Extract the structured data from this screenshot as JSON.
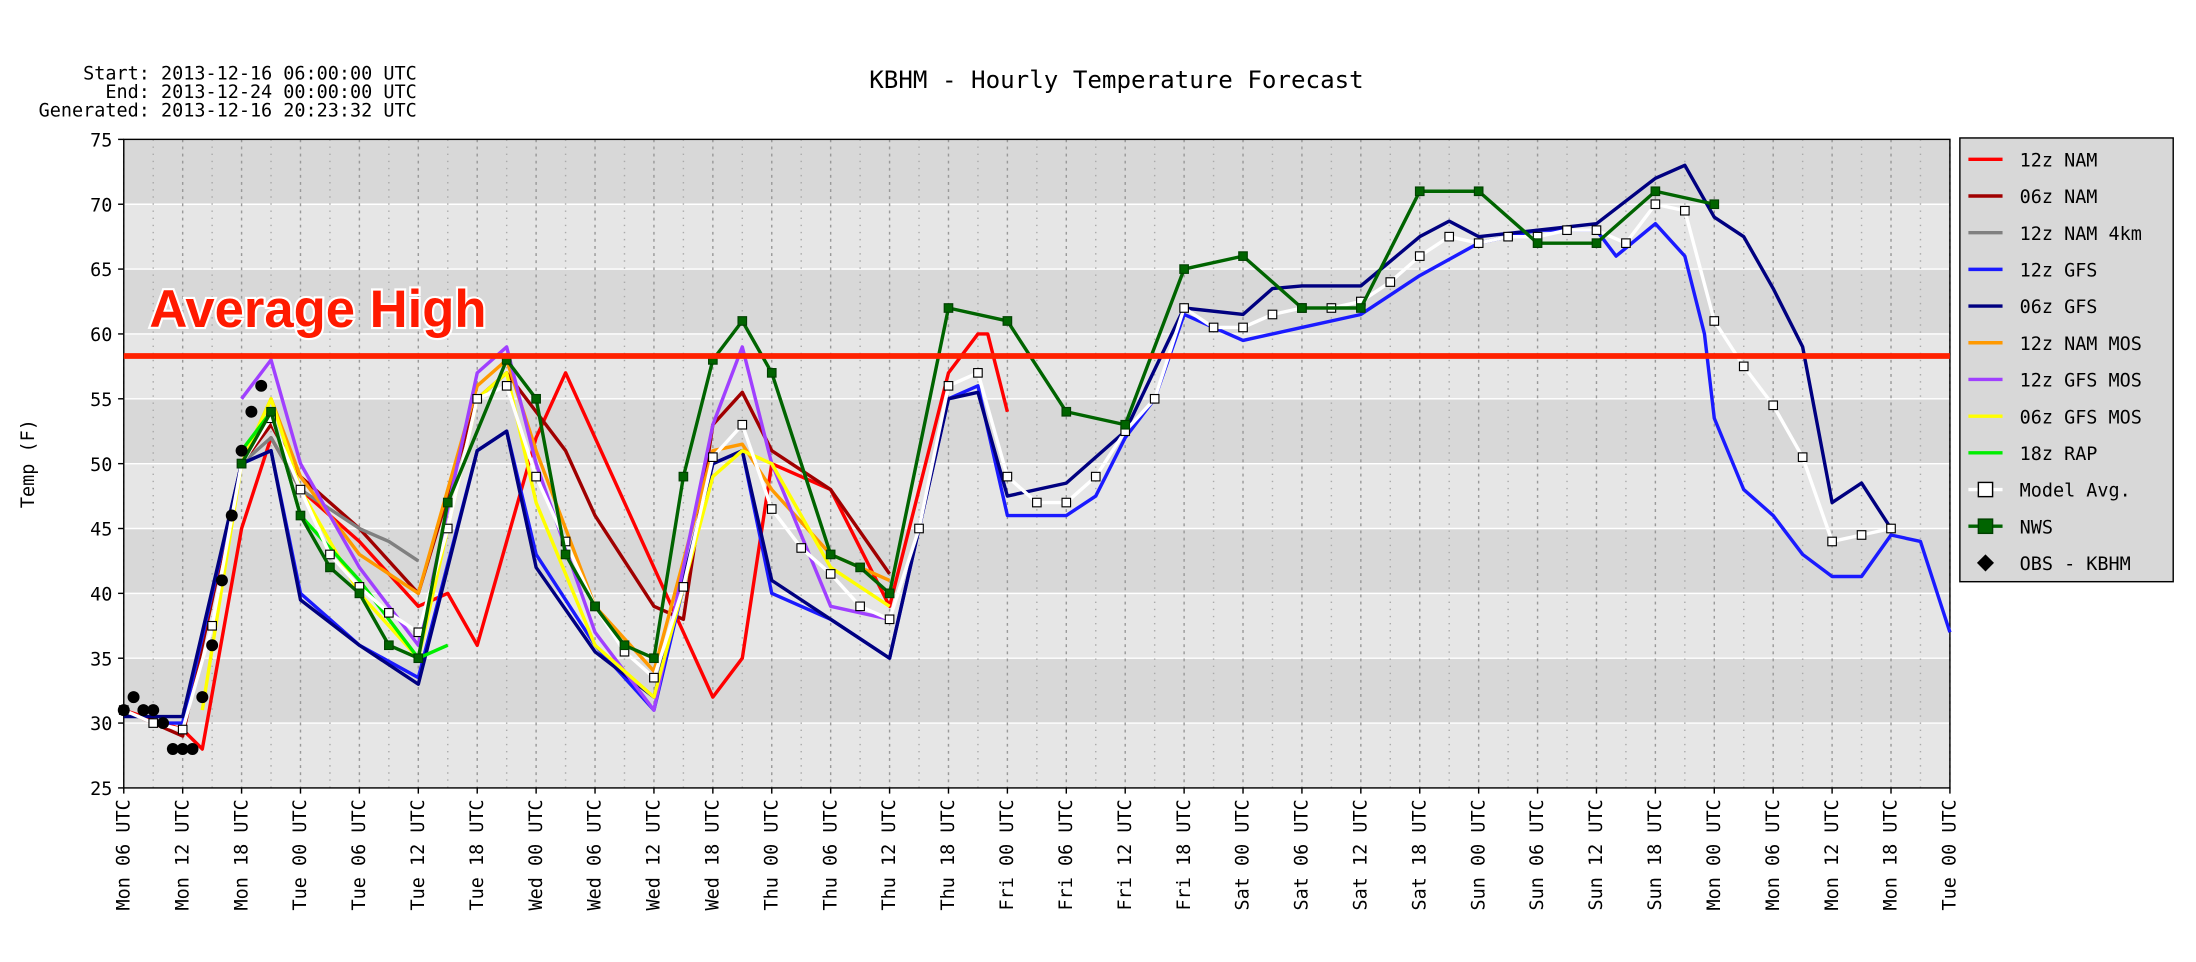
{
  "chart_data": {
    "type": "line",
    "title": "KBHM - Hourly Temperature Forecast",
    "header": [
      "Start: 2013-12-16 06:00:00 UTC",
      "End: 2013-12-24 00:00:00 UTC",
      "Generated: 2013-12-16 20:23:32 UTC"
    ],
    "y_label": "Temp (F)",
    "xlim": [
      0,
      186
    ],
    "xticks": [
      {
        "value": 0,
        "label": "Mon 06 UTC"
      },
      {
        "value": 6,
        "label": "Mon 12 UTC"
      },
      {
        "value": 12,
        "label": "Mon 18 UTC"
      },
      {
        "value": 18,
        "label": "Tue 00 UTC"
      },
      {
        "value": 24,
        "label": "Tue 06 UTC"
      },
      {
        "value": 30,
        "label": "Tue 12 UTC"
      },
      {
        "value": 36,
        "label": "Tue 18 UTC"
      },
      {
        "value": 42,
        "label": "Wed 00 UTC"
      },
      {
        "value": 48,
        "label": "Wed 06 UTC"
      },
      {
        "value": 54,
        "label": "Wed 12 UTC"
      },
      {
        "value": 60,
        "label": "Wed 18 UTC"
      },
      {
        "value": 66,
        "label": "Thu 00 UTC"
      },
      {
        "value": 72,
        "label": "Thu 06 UTC"
      },
      {
        "value": 78,
        "label": "Thu 12 UTC"
      },
      {
        "value": 84,
        "label": "Thu 18 UTC"
      },
      {
        "value": 90,
        "label": "Fri 00 UTC"
      },
      {
        "value": 96,
        "label": "Fri 06 UTC"
      },
      {
        "value": 102,
        "label": "Fri 12 UTC"
      },
      {
        "value": 108,
        "label": "Fri 18 UTC"
      },
      {
        "value": 114,
        "label": "Sat 00 UTC"
      },
      {
        "value": 120,
        "label": "Sat 06 UTC"
      },
      {
        "value": 126,
        "label": "Sat 12 UTC"
      },
      {
        "value": 132,
        "label": "Sat 18 UTC"
      },
      {
        "value": 138,
        "label": "Sun 00 UTC"
      },
      {
        "value": 144,
        "label": "Sun 06 UTC"
      },
      {
        "value": 150,
        "label": "Sun 12 UTC"
      },
      {
        "value": 156,
        "label": "Sun 18 UTC"
      },
      {
        "value": 162,
        "label": "Mon 00 UTC"
      },
      {
        "value": 168,
        "label": "Mon 06 UTC"
      },
      {
        "value": 174,
        "label": "Mon 12 UTC"
      },
      {
        "value": 180,
        "label": "Mon 18 UTC"
      },
      {
        "value": 186,
        "label": "Tue 00 UTC"
      }
    ],
    "ylim": [
      25,
      75
    ],
    "yticks": [
      25,
      30,
      35,
      40,
      45,
      50,
      55,
      60,
      65,
      70,
      75
    ],
    "grid": true,
    "legend": "right",
    "annotation": {
      "text": "Average High",
      "value": 58.3,
      "color": "#ff2200"
    },
    "series": [
      {
        "name": "12z NAM",
        "color": "#ff0000",
        "marker": "none",
        "x": [
          0,
          6,
          8,
          12,
          15,
          18,
          24,
          30,
          33,
          36,
          42,
          45,
          48,
          54,
          60,
          63,
          66,
          72,
          78,
          84,
          87,
          88,
          90
        ],
        "values": [
          31,
          29.5,
          28,
          45,
          52,
          48,
          44,
          39,
          40,
          36,
          52,
          57,
          52,
          42,
          32,
          35,
          50,
          48,
          39,
          57,
          60,
          60,
          54
        ]
      },
      {
        "name": "06z NAM",
        "color": "#a00000",
        "marker": "none",
        "x": [
          0,
          6,
          12,
          15,
          18,
          24,
          30,
          36,
          39,
          42,
          45,
          48,
          54,
          57,
          60,
          63,
          66,
          72,
          78
        ],
        "values": [
          31,
          29,
          50,
          53,
          49,
          45,
          40,
          55,
          57,
          54,
          51,
          46,
          39,
          38,
          53,
          55.5,
          51,
          48,
          41.5
        ]
      },
      {
        "name": "12z NAM 4km",
        "color": "#808080",
        "marker": "none",
        "x": [
          6,
          12,
          15,
          18,
          24,
          27,
          30
        ],
        "values": [
          30,
          50,
          52,
          48,
          45,
          44,
          42.5
        ]
      },
      {
        "name": "12z GFS",
        "color": "#1a1aff",
        "marker": "none",
        "x": [
          3,
          6,
          12,
          15,
          18,
          24,
          30,
          36,
          39,
          42,
          48,
          54,
          60,
          63,
          66,
          72,
          78,
          84,
          87,
          90,
          96,
          99,
          102,
          105,
          108,
          114,
          120,
          126,
          132,
          138,
          144,
          150,
          152,
          156,
          159,
          161,
          162,
          165,
          168,
          171,
          174,
          177,
          180,
          183,
          186
        ],
        "values": [
          30,
          30,
          50,
          51,
          40,
          36,
          33.5,
          51,
          52.5,
          43,
          36,
          31,
          50,
          51,
          40,
          38,
          35,
          55,
          56,
          46,
          46,
          47.5,
          52,
          55,
          61.5,
          59.5,
          60.5,
          61.5,
          64.5,
          67,
          68,
          68,
          66,
          68.5,
          66,
          60,
          53.5,
          48,
          46,
          43,
          41.3,
          41.3,
          44.5,
          44,
          37
        ]
      },
      {
        "name": "06z GFS",
        "color": "#000080",
        "marker": "none",
        "x": [
          0,
          6,
          12,
          15,
          18,
          24,
          30,
          36,
          39,
          42,
          48,
          54,
          60,
          63,
          66,
          72,
          78,
          84,
          87,
          90,
          96,
          102,
          108,
          114,
          117,
          120,
          126,
          132,
          135,
          138,
          144,
          150,
          156,
          159,
          162,
          165,
          168,
          171,
          174,
          177,
          180
        ],
        "values": [
          30.5,
          30.5,
          50,
          51,
          39.5,
          36,
          33,
          51,
          52.5,
          42,
          35.5,
          32,
          50,
          51,
          41,
          38,
          35,
          55,
          55.5,
          47.5,
          48.5,
          52.5,
          62,
          61.5,
          63.5,
          63.7,
          63.7,
          67.5,
          68.7,
          67.5,
          68,
          68.5,
          72,
          73,
          69,
          67.5,
          63.5,
          59,
          47,
          48.5,
          45
        ]
      },
      {
        "name": "12z NAM MOS",
        "color": "#ff9900",
        "marker": "none",
        "x": [
          12,
          15,
          18,
          24,
          30,
          36,
          39,
          42,
          48,
          54,
          60,
          63,
          66,
          72,
          78
        ],
        "values": [
          50,
          55,
          49,
          43,
          40,
          56,
          58,
          51,
          39,
          34,
          51,
          51.5,
          48,
          43,
          41
        ]
      },
      {
        "name": "12z GFS MOS",
        "color": "#a040ff",
        "marker": "none",
        "x": [
          12,
          15,
          18,
          24,
          30,
          36,
          39,
          42,
          48,
          54,
          60,
          63,
          66,
          72,
          78
        ],
        "values": [
          55,
          58,
          50,
          42,
          36,
          57,
          59,
          50,
          37,
          31,
          53,
          59,
          50,
          39,
          38
        ]
      },
      {
        "name": "06z GFS MOS",
        "color": "#ffff00",
        "marker": "none",
        "x": [
          8,
          12,
          15,
          18,
          24,
          30,
          36,
          39,
          42,
          48,
          54,
          60,
          63,
          66,
          72,
          78
        ],
        "values": [
          31,
          50,
          55,
          48,
          40,
          35,
          55,
          57,
          47,
          36,
          32,
          49,
          51,
          50,
          42,
          39
        ]
      },
      {
        "name": "18z RAP",
        "color": "#00ee00",
        "marker": "none",
        "x": [
          12,
          15,
          18,
          24,
          30,
          33
        ],
        "values": [
          51,
          54,
          46,
          41,
          35,
          36
        ]
      },
      {
        "name": "Model Avg.",
        "color": "#ffffff",
        "marker": "square",
        "x": [
          0,
          3,
          6,
          9,
          12,
          15,
          18,
          21,
          24,
          27,
          30,
          33,
          36,
          39,
          42,
          45,
          48,
          51,
          54,
          57,
          60,
          63,
          66,
          69,
          72,
          75,
          78,
          81,
          84,
          87,
          90,
          93,
          96,
          99,
          102,
          105,
          108,
          111,
          114,
          117,
          120,
          123,
          126,
          129,
          132,
          135,
          138,
          141,
          144,
          147,
          150,
          153,
          156,
          159,
          162,
          165,
          168,
          171,
          174,
          177,
          180
        ],
        "values": [
          31,
          30,
          29.5,
          37.5,
          50,
          53.5,
          48,
          43,
          40.5,
          38.5,
          37,
          45,
          55,
          56,
          49,
          44,
          39,
          35.5,
          33.5,
          40.5,
          50.5,
          53,
          46.5,
          43.5,
          41.5,
          39,
          38,
          45,
          56,
          57,
          49,
          47,
          47,
          49,
          52.5,
          55,
          62,
          60.5,
          60.5,
          61.5,
          62,
          62,
          62.5,
          64,
          66,
          67.5,
          67,
          67.5,
          67.5,
          68,
          68,
          67,
          70,
          69.5,
          61,
          57.5,
          54.5,
          50.5,
          44,
          44.5,
          45
        ]
      },
      {
        "name": "NWS",
        "color": "#006400",
        "marker": "square",
        "x": [
          12,
          15,
          18,
          21,
          24,
          27,
          30,
          33,
          39,
          42,
          45,
          48,
          51,
          54,
          57,
          60,
          63,
          66,
          72,
          75,
          78,
          84,
          90,
          96,
          102,
          108,
          114,
          120,
          126,
          132,
          138,
          144,
          150,
          156,
          162
        ],
        "values": [
          50,
          54,
          46,
          42,
          40,
          36,
          35,
          47,
          58,
          55,
          43,
          39,
          36,
          35,
          49,
          58,
          61,
          57,
          43,
          42,
          40,
          62,
          61,
          54,
          53,
          65,
          66,
          62,
          62,
          71,
          71,
          67,
          67,
          71,
          70
        ]
      },
      {
        "name": "OBS - KBHM",
        "color": "#000000",
        "marker": "circle",
        "x": [
          0,
          1,
          2,
          3,
          4,
          5,
          6,
          7,
          8,
          9,
          10,
          11,
          12,
          13,
          14
        ],
        "values": [
          31,
          32,
          31,
          31,
          30,
          28,
          28,
          28,
          32,
          36,
          41,
          46,
          51,
          54,
          56
        ]
      }
    ]
  }
}
